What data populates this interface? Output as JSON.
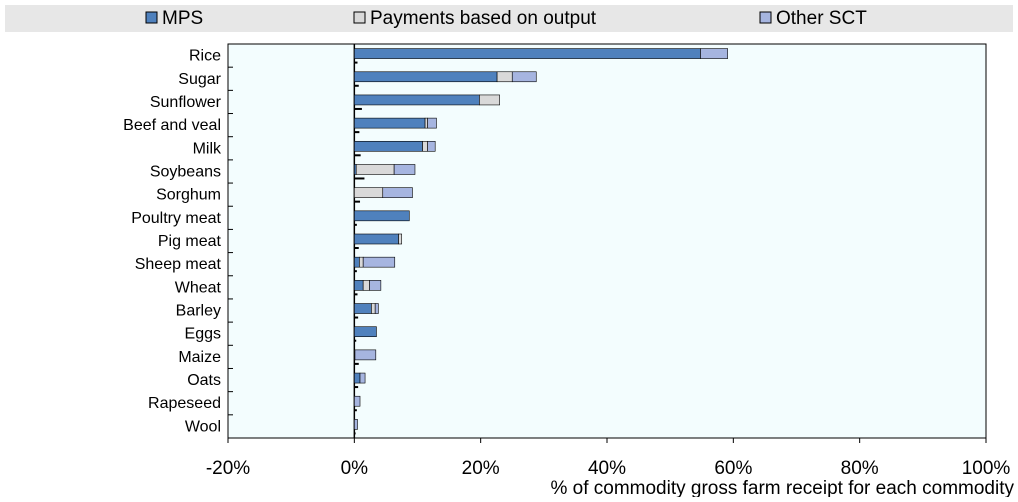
{
  "chart_data": {
    "type": "bar",
    "orientation": "horizontal",
    "stacked": true,
    "legend_position": "top",
    "xlabel": "% of commodity gross farm receipt for each commodity",
    "ylabel": "",
    "xlim": [
      -20,
      100
    ],
    "xticks": [
      -20,
      0,
      20,
      40,
      60,
      80,
      100
    ],
    "xtick_labels": [
      "-20%",
      "0%",
      "20%",
      "40%",
      "60%",
      "80%",
      "100%"
    ],
    "grid": false,
    "categories": [
      "Rice",
      "Sugar",
      "Sunflower",
      "Beef and veal",
      "Milk",
      "Soybeans",
      "Sorghum",
      "Poultry meat",
      "Pig meat",
      "Sheep meat",
      "Wheat",
      "Barley",
      "Eggs",
      "Maize",
      "Oats",
      "Rapeseed",
      "Wool"
    ],
    "series": [
      {
        "name": "MPS",
        "color": "#4f81bd",
        "values": [
          54.8,
          22.6,
          19.8,
          11.2,
          10.8,
          0.3,
          0.0,
          8.7,
          7.0,
          0.8,
          1.4,
          2.7,
          3.5,
          0.0,
          0.9,
          0.0,
          0.0
        ]
      },
      {
        "name": "Payments based on output",
        "color": "#d9d9d9",
        "values": [
          0.0,
          2.4,
          3.2,
          0.4,
          0.8,
          6.0,
          4.5,
          0.0,
          0.5,
          0.6,
          1.0,
          0.6,
          0.0,
          0.1,
          0.0,
          0.0,
          0.0
        ]
      },
      {
        "name": "Other SCT",
        "color": "#a6b5e0",
        "values": [
          4.3,
          3.8,
          0.0,
          1.4,
          1.2,
          3.3,
          4.7,
          0.0,
          0.0,
          5.0,
          1.8,
          0.5,
          0.0,
          3.3,
          0.8,
          0.9,
          0.5
        ]
      }
    ],
    "marker_values": [
      0.5,
      0.7,
      1.2,
      0.8,
      1.0,
      1.6,
      0.9,
      0.4,
      0.7,
      0.4,
      0.5,
      0.6,
      0.3,
      0.7,
      0.6,
      0.4,
      0.2
    ]
  }
}
